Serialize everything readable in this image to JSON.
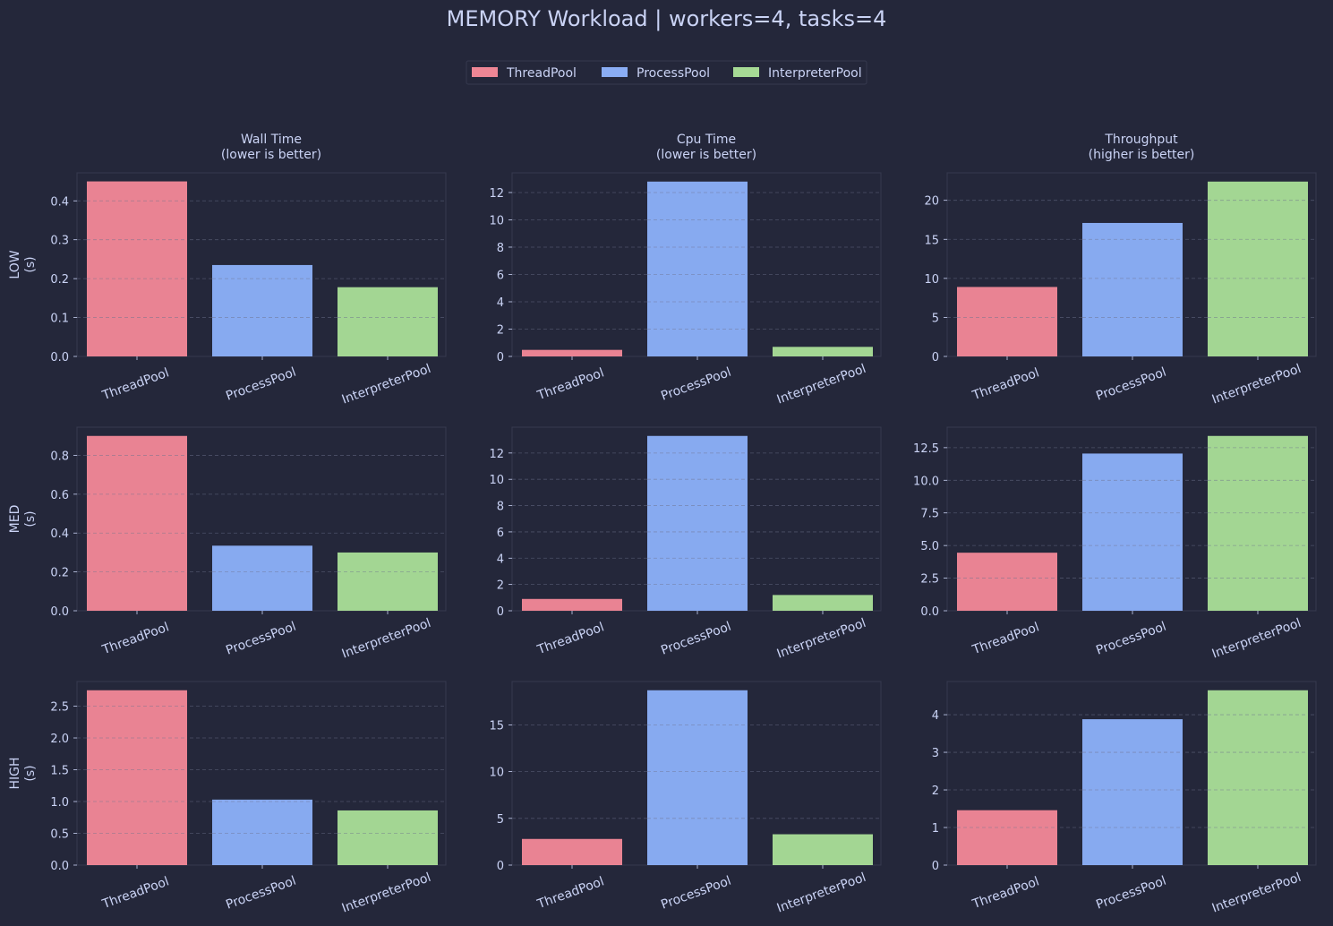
{
  "figure_title": "MEMORY Workload | workers=4, tasks=4",
  "legend": {
    "placement": "top-center",
    "entries": [
      {
        "name": "ThreadPool",
        "color": "#ee8695"
      },
      {
        "name": "ProcessPool",
        "color": "#8aadf4"
      },
      {
        "name": "InterpreterPool",
        "color": "#a6da95"
      }
    ]
  },
  "colors": {
    "background": "#24273a",
    "text": "#cad3f5",
    "frame": "#363a4f",
    "grid": "#6e738d"
  },
  "column_titles": [
    [
      "Wall Time",
      "(lower is better)"
    ],
    [
      "Cpu Time",
      "(lower is better)"
    ],
    [
      "Throughput",
      "(higher is better)"
    ]
  ],
  "row_labels": [
    [
      "LOW",
      "(s)"
    ],
    [
      "MED",
      "(s)"
    ],
    [
      "HIGH",
      "(s)"
    ]
  ],
  "chart_data": [
    {
      "type": "bar",
      "row": "LOW",
      "column": "Wall Time",
      "categories": [
        "ThreadPool",
        "ProcessPool",
        "InterpreterPool"
      ],
      "values": [
        0.45,
        0.235,
        0.178
      ],
      "ylim": [
        0,
        0.472
      ],
      "yticks": [
        "0.0",
        "0.1",
        "0.2",
        "0.3",
        "0.4"
      ],
      "ytick_values": [
        0,
        0.1,
        0.2,
        0.3,
        0.4
      ],
      "grid": "y-dashed"
    },
    {
      "type": "bar",
      "row": "LOW",
      "column": "Cpu Time",
      "categories": [
        "ThreadPool",
        "ProcessPool",
        "InterpreterPool"
      ],
      "values": [
        0.48,
        12.8,
        0.7
      ],
      "ylim": [
        0,
        13.44
      ],
      "yticks": [
        "0",
        "2",
        "4",
        "6",
        "8",
        "10",
        "12"
      ],
      "ytick_values": [
        0,
        2,
        4,
        6,
        8,
        10,
        12
      ],
      "grid": "y-dashed"
    },
    {
      "type": "bar",
      "row": "LOW",
      "column": "Throughput",
      "categories": [
        "ThreadPool",
        "ProcessPool",
        "InterpreterPool"
      ],
      "values": [
        8.9,
        17.1,
        22.4
      ],
      "ylim": [
        0,
        23.52
      ],
      "yticks": [
        "0",
        "5",
        "10",
        "15",
        "20"
      ],
      "ytick_values": [
        0,
        5,
        10,
        15,
        20
      ],
      "grid": "y-dashed"
    },
    {
      "type": "bar",
      "row": "MED",
      "column": "Wall Time",
      "categories": [
        "ThreadPool",
        "ProcessPool",
        "InterpreterPool"
      ],
      "values": [
        0.9,
        0.335,
        0.3
      ],
      "ylim": [
        0,
        0.945
      ],
      "yticks": [
        "0.0",
        "0.2",
        "0.4",
        "0.6",
        "0.8"
      ],
      "ytick_values": [
        0,
        0.2,
        0.4,
        0.6,
        0.8
      ],
      "grid": "y-dashed"
    },
    {
      "type": "bar",
      "row": "MED",
      "column": "Cpu Time",
      "categories": [
        "ThreadPool",
        "ProcessPool",
        "InterpreterPool"
      ],
      "values": [
        0.9,
        13.3,
        1.2
      ],
      "ylim": [
        0,
        13.965
      ],
      "yticks": [
        "0",
        "2",
        "4",
        "6",
        "8",
        "10",
        "12"
      ],
      "ytick_values": [
        0,
        2,
        4,
        6,
        8,
        10,
        12
      ],
      "grid": "y-dashed"
    },
    {
      "type": "bar",
      "row": "MED",
      "column": "Throughput",
      "categories": [
        "ThreadPool",
        "ProcessPool",
        "InterpreterPool"
      ],
      "values": [
        4.45,
        12.05,
        13.4
      ],
      "ylim": [
        0,
        14.07
      ],
      "yticks": [
        "0.0",
        "2.5",
        "5.0",
        "7.5",
        "10.0",
        "12.5"
      ],
      "ytick_values": [
        0,
        2.5,
        5,
        7.5,
        10,
        12.5
      ],
      "grid": "y-dashed"
    },
    {
      "type": "bar",
      "row": "HIGH",
      "column": "Wall Time",
      "categories": [
        "ThreadPool",
        "ProcessPool",
        "InterpreterPool"
      ],
      "values": [
        2.75,
        1.03,
        0.86
      ],
      "ylim": [
        0,
        2.8875
      ],
      "yticks": [
        "0.0",
        "0.5",
        "1.0",
        "1.5",
        "2.0",
        "2.5"
      ],
      "ytick_values": [
        0,
        0.5,
        1,
        1.5,
        2,
        2.5
      ],
      "grid": "y-dashed"
    },
    {
      "type": "bar",
      "row": "HIGH",
      "column": "Cpu Time",
      "categories": [
        "ThreadPool",
        "ProcessPool",
        "InterpreterPool"
      ],
      "values": [
        2.8,
        18.7,
        3.3
      ],
      "ylim": [
        0,
        19.635
      ],
      "yticks": [
        "0",
        "5",
        "10",
        "15"
      ],
      "ytick_values": [
        0,
        5,
        10,
        15
      ],
      "grid": "y-dashed"
    },
    {
      "type": "bar",
      "row": "HIGH",
      "column": "Throughput",
      "categories": [
        "ThreadPool",
        "ProcessPool",
        "InterpreterPool"
      ],
      "values": [
        1.46,
        3.88,
        4.65
      ],
      "ylim": [
        0,
        4.8825
      ],
      "yticks": [
        "0",
        "1",
        "2",
        "3",
        "4"
      ],
      "ytick_values": [
        0,
        1,
        2,
        3,
        4
      ],
      "grid": "y-dashed"
    }
  ]
}
